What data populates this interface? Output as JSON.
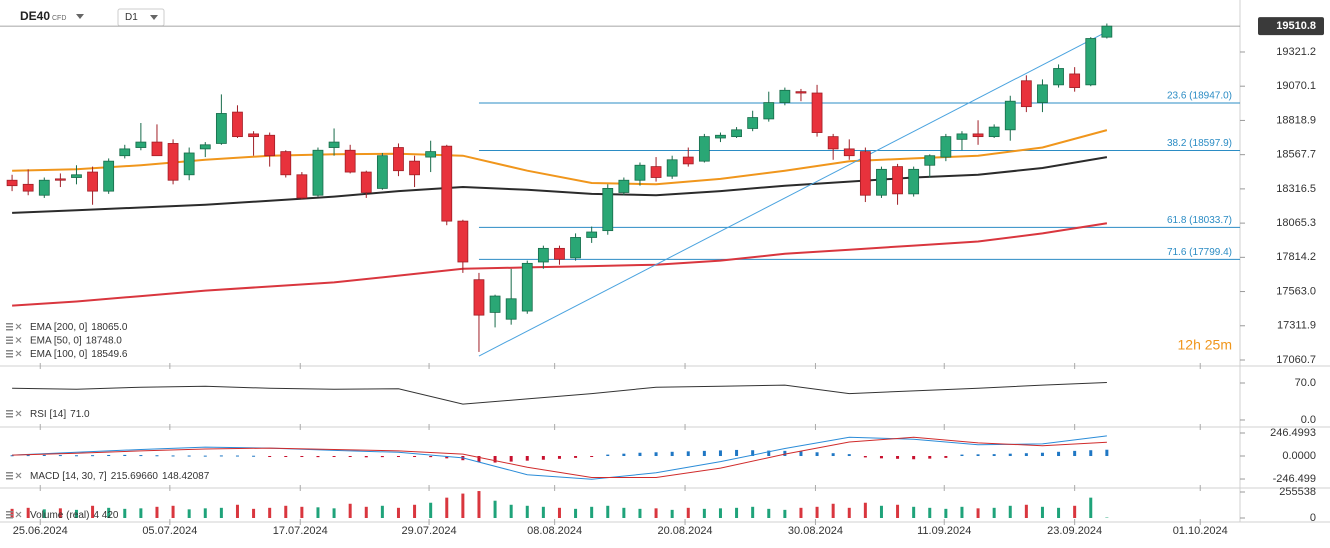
{
  "header": {
    "symbol": "DE40",
    "symbol_type": "CFD",
    "interval": "D1",
    "timer": "12h 25m"
  },
  "chart_data": [
    {
      "type": "candlestick",
      "open": [
        18380,
        18350,
        18270,
        18390,
        18400,
        18440,
        18300,
        18560,
        18620,
        18660,
        18650,
        18420,
        18610,
        18650,
        18880,
        18720,
        18710,
        18590,
        18420,
        18270,
        18620,
        18600,
        18440,
        18320,
        18620,
        18520,
        18550,
        18630,
        18080,
        17650,
        17410,
        17360,
        17420,
        17780,
        17880,
        17810,
        17960,
        18010,
        18290,
        18380,
        18480,
        18410,
        18550,
        18520,
        18690,
        18700,
        18760,
        18830,
        18950,
        19030,
        19020,
        18700,
        18610,
        18590,
        18270,
        18480,
        18280,
        18490,
        18550,
        18680,
        18720,
        18700,
        18750,
        19110,
        18950,
        19080,
        19160,
        19080,
        19430
      ],
      "high": [
        18420,
        18460,
        18400,
        18430,
        18490,
        18480,
        18540,
        18640,
        18800,
        18790,
        18680,
        18620,
        18660,
        19010,
        18930,
        18740,
        18730,
        18600,
        18440,
        18620,
        18760,
        18640,
        18450,
        18580,
        18650,
        18560,
        18670,
        18640,
        18090,
        17700,
        17540,
        17730,
        17790,
        17900,
        17900,
        17990,
        18040,
        18350,
        18400,
        18510,
        18550,
        18560,
        18620,
        18720,
        18730,
        18770,
        18890,
        19030,
        19060,
        19050,
        19080,
        18720,
        18680,
        18620,
        18480,
        18500,
        18480,
        18570,
        18720,
        18740,
        18820,
        18790,
        19000,
        19150,
        19120,
        19230,
        19210,
        19430,
        19530
      ],
      "low": [
        18300,
        18270,
        18250,
        18330,
        18350,
        18200,
        18280,
        18540,
        18600,
        18560,
        18350,
        18380,
        18550,
        18640,
        18690,
        18560,
        18480,
        18400,
        18240,
        18260,
        18560,
        18430,
        18250,
        18310,
        18410,
        18330,
        18440,
        18050,
        17700,
        17120,
        17300,
        17320,
        17400,
        17730,
        17760,
        17790,
        17920,
        17980,
        18270,
        18340,
        18370,
        18390,
        18480,
        18510,
        18660,
        18690,
        18740,
        18810,
        18930,
        18960,
        18700,
        18530,
        18530,
        18220,
        18250,
        18200,
        18260,
        18400,
        18520,
        18600,
        18640,
        18690,
        18670,
        18880,
        18880,
        19060,
        19030,
        19070,
        19420
      ],
      "close": [
        18340,
        18300,
        18380,
        18380,
        18420,
        18300,
        18520,
        18610,
        18660,
        18560,
        18380,
        18580,
        18640,
        18870,
        18700,
        18700,
        18560,
        18420,
        18250,
        18600,
        18660,
        18440,
        18290,
        18560,
        18450,
        18420,
        18590,
        18080,
        17780,
        17390,
        17530,
        17510,
        17770,
        17880,
        17800,
        17960,
        18000,
        18320,
        18380,
        18490,
        18400,
        18530,
        18500,
        18700,
        18710,
        18750,
        18840,
        18950,
        19040,
        19020,
        18730,
        18610,
        18560,
        18270,
        18460,
        18280,
        18460,
        18560,
        18700,
        18720,
        18700,
        18770,
        18960,
        18920,
        19080,
        19200,
        19060,
        19420,
        19510.8
      ],
      "up_color": "#2aa775",
      "down_color": "#e8323c",
      "series": [
        {
          "name": "EMA [200, 0]",
          "value_label": "18065.0",
          "color": "#d9363e",
          "x": [
            0,
            4,
            8,
            12,
            16,
            20,
            24,
            28,
            32,
            36,
            40,
            44,
            48,
            52,
            56,
            60,
            64,
            68
          ],
          "values": [
            17460,
            17490,
            17530,
            17570,
            17600,
            17630,
            17680,
            17730,
            17740,
            17750,
            17760,
            17790,
            17840,
            17870,
            17900,
            17930,
            17990,
            18065
          ]
        },
        {
          "name": "EMA [50, 0]",
          "value_label": "18748.0",
          "color": "#f0961c",
          "x": [
            0,
            4,
            8,
            12,
            16,
            20,
            24,
            28,
            32,
            36,
            40,
            44,
            48,
            52,
            56,
            60,
            64,
            68
          ],
          "values": [
            18450,
            18460,
            18490,
            18530,
            18560,
            18570,
            18575,
            18560,
            18450,
            18360,
            18350,
            18390,
            18450,
            18520,
            18540,
            18560,
            18620,
            18748
          ]
        },
        {
          "name": "EMA [100, 0]",
          "value_label": "18549.6",
          "color": "#2b2b2b",
          "x": [
            0,
            4,
            8,
            12,
            16,
            20,
            24,
            28,
            32,
            36,
            40,
            44,
            48,
            52,
            56,
            60,
            64,
            68
          ],
          "values": [
            18140,
            18160,
            18180,
            18200,
            18230,
            18260,
            18300,
            18330,
            18310,
            18280,
            18270,
            18300,
            18340,
            18370,
            18400,
            18420,
            18470,
            18549.6
          ]
        }
      ],
      "fib_levels": [
        {
          "label": "23.6 (18947.0)",
          "price": 18947.0
        },
        {
          "label": "38.2 (18597.9)",
          "price": 18597.9
        },
        {
          "label": "61.8 (18033.7)",
          "price": 18033.7
        },
        {
          "label": "71.6 (17799.4)",
          "price": 17799.4
        }
      ],
      "fib_color": "#2b8cc4",
      "trendline": {
        "x": [
          29,
          68
        ],
        "values": [
          17090,
          19470
        ],
        "color": "#4aa3df"
      },
      "last_price": 19510.8,
      "xlim": [
        -0.75,
        76.27
      ],
      "xticks": [
        {
          "value": 1.75,
          "label": "25.06.2024"
        },
        {
          "value": 9.8,
          "label": "05.07.2024"
        },
        {
          "value": 17.9,
          "label": "17.07.2024"
        },
        {
          "value": 25.9,
          "label": "29.07.2024"
        },
        {
          "value": 33.7,
          "label": "08.08.2024"
        },
        {
          "value": 41.8,
          "label": "20.08.2024"
        },
        {
          "value": 49.9,
          "label": "30.08.2024"
        },
        {
          "value": 57.9,
          "label": "11.09.2024"
        },
        {
          "value": 66.0,
          "label": "23.09.2024"
        },
        {
          "value": 73.8,
          "label": "01.10.2024"
        }
      ],
      "ylim": [
        17024,
        19644
      ],
      "yticks": [
        19321.2,
        19070.1,
        18818.9,
        18567.7,
        18316.5,
        18065.3,
        17814.2,
        {
          "value": 17563.0,
          "label": "17563.0"
        },
        17311.9,
        17060.7
      ]
    },
    {
      "type": "line",
      "series": [
        {
          "name": "RSI [14]",
          "value_label": "71.0",
          "color": "#333333",
          "x": [
            0,
            4,
            8,
            12,
            16,
            20,
            24,
            28,
            32,
            36,
            40,
            44,
            48,
            52,
            56,
            60,
            64,
            68
          ],
          "values": [
            60,
            58,
            62,
            64,
            60,
            58,
            59,
            30,
            40,
            50,
            62,
            64,
            66,
            50,
            55,
            60,
            66,
            71
          ]
        }
      ],
      "ylim": [
        -9.5,
        100.3
      ],
      "yticks": [
        {
          "value": 70,
          "label": "70.0"
        },
        {
          "value": 0,
          "label": "0.0"
        }
      ]
    },
    {
      "type": "macd",
      "histogram": [
        8,
        10,
        12,
        10,
        8,
        9,
        11,
        12,
        10,
        8,
        6,
        5,
        4,
        6,
        5,
        3,
        -5,
        -8,
        -10,
        -12,
        -8,
        -10,
        -14,
        -12,
        -10,
        -9,
        -12,
        -25,
        -45,
        -65,
        -70,
        -60,
        -50,
        -40,
        -30,
        -20,
        -10,
        15,
        25,
        35,
        40,
        45,
        50,
        55,
        60,
        65,
        62,
        58,
        55,
        50,
        40,
        30,
        20,
        -15,
        -25,
        -30,
        -35,
        -28,
        -20,
        15,
        18,
        20,
        25,
        30,
        35,
        45,
        55,
        62,
        67.27
      ],
      "pos_color": "#1f77c4",
      "neg_color": "#c8102e",
      "name": "MACD [14, 30, 7]",
      "series": [
        {
          "value_label": "215.69660",
          "color": "#2b8cd8",
          "x": [
            0,
            4,
            8,
            12,
            16,
            20,
            24,
            28,
            32,
            36,
            40,
            44,
            48,
            52,
            56,
            60,
            64,
            68
          ],
          "values": [
            10,
            40,
            70,
            95,
            85,
            60,
            40,
            -20,
            -200,
            -250,
            -180,
            -60,
            80,
            200,
            180,
            120,
            130,
            215.6966
          ]
        },
        {
          "value_label": "148.42087",
          "color": "#d02b2b",
          "x": [
            0,
            4,
            8,
            12,
            16,
            20,
            24,
            28,
            32,
            36,
            40,
            44,
            48,
            52,
            56,
            60,
            64,
            68
          ],
          "values": [
            10,
            30,
            55,
            75,
            85,
            70,
            55,
            20,
            -120,
            -230,
            -230,
            -130,
            20,
            150,
            200,
            140,
            110,
            148.42087
          ]
        }
      ],
      "ylim": [
        -332,
        300
      ],
      "yticks": [
        246.4993,
        {
          "value": 0,
          "label": "0.0000"
        },
        {
          "value": -246.4993,
          "label": "-246.499"
        }
      ]
    },
    {
      "type": "volume",
      "name": "Volume (real)",
      "value_label": "4 420",
      "values": [
        90000,
        100000,
        85000,
        95000,
        80000,
        120000,
        100000,
        90000,
        95000,
        110000,
        120000,
        85000,
        95000,
        100000,
        130000,
        90000,
        100000,
        120000,
        110000,
        105000,
        95000,
        140000,
        110000,
        120000,
        100000,
        130000,
        150000,
        200000,
        240000,
        265000,
        170000,
        130000,
        120000,
        110000,
        100000,
        90000,
        110000,
        120000,
        100000,
        90000,
        95000,
        80000,
        100000,
        90000,
        95000,
        100000,
        110000,
        90000,
        80000,
        100000,
        110000,
        140000,
        100000,
        150000,
        120000,
        130000,
        110000,
        100000,
        90000,
        110000,
        95000,
        100000,
        120000,
        130000,
        110000,
        100000,
        120000,
        200000,
        4420
      ],
      "ylim": [
        -39313,
        275194
      ],
      "yticks": [
        255538,
        0
      ]
    }
  ]
}
